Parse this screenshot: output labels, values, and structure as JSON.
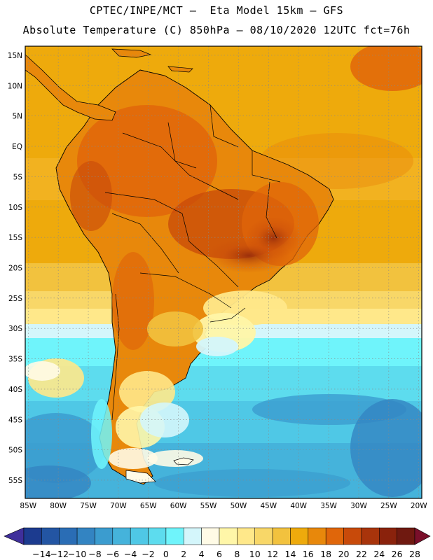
{
  "header": {
    "line1": "CPTEC/INPE/MCT –  Eta Model 15km – GFS",
    "line2": "Absolute Temperature (C) 850hPa – 08/10/2020 12UTC fct=76h"
  },
  "map": {
    "lat_labels": [
      "15N",
      "10N",
      "5N",
      "EQ",
      "5S",
      "10S",
      "15S",
      "20S",
      "25S",
      "30S",
      "35S",
      "40S",
      "45S",
      "50S",
      "55S"
    ],
    "lat_values": [
      15,
      10,
      5,
      0,
      -5,
      -10,
      -15,
      -20,
      -25,
      -30,
      -35,
      -40,
      -45,
      -50,
      -55
    ],
    "lon_labels": [
      "85W",
      "80W",
      "75W",
      "70W",
      "65W",
      "60W",
      "55W",
      "50W",
      "45W",
      "40W",
      "35W",
      "30W",
      "25W",
      "20W"
    ],
    "lon_values": [
      -85,
      -80,
      -75,
      -70,
      -65,
      -60,
      -55,
      -50,
      -45,
      -40,
      -35,
      -30,
      -25,
      -20
    ],
    "extent": {
      "lon_min": -85.5,
      "lon_max": -19.5,
      "lat_min": -58,
      "lat_max": 16.5
    }
  },
  "colorbar": {
    "labels": [
      "-14",
      "-12",
      "-10",
      "-8",
      "-6",
      "-4",
      "-2",
      "0",
      "2",
      "4",
      "6",
      "8",
      "10",
      "12",
      "14",
      "16",
      "18",
      "20",
      "22",
      "24",
      "26",
      "28"
    ],
    "colors": [
      "#1c3b8f",
      "#2355a3",
      "#2a6db5",
      "#3384c2",
      "#3b9ccf",
      "#45b3db",
      "#4fc8e6",
      "#5ddcee",
      "#6ff4fb",
      "#d4f6fb",
      "#fffbe6",
      "#fff6a8",
      "#ffe88a",
      "#f8d768",
      "#f2c23e",
      "#eeaa0c",
      "#e8880b",
      "#e0660a",
      "#c84a0a",
      "#a8340b",
      "#8a220c",
      "#6f1910"
    ],
    "under_color": "#3f2f9b",
    "over_color": "#7a0f2a"
  }
}
